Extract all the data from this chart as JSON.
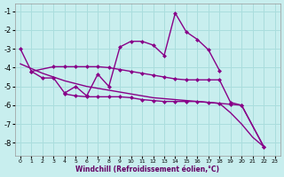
{
  "background_color": "#c8eeee",
  "grid_color": "#aadddd",
  "line_color": "#880088",
  "xlabel": "Windchill (Refroidissement éolien,°C)",
  "xlim": [
    -0.5,
    23.5
  ],
  "ylim": [
    -8.7,
    -0.6
  ],
  "yticks": [
    -8,
    -7,
    -6,
    -5,
    -4,
    -3,
    -2,
    -1
  ],
  "xticks": [
    0,
    1,
    2,
    3,
    4,
    5,
    6,
    7,
    8,
    9,
    10,
    11,
    12,
    13,
    14,
    15,
    16,
    17,
    18,
    19,
    20,
    21,
    22,
    23
  ],
  "curve1_x": [
    0,
    1,
    2,
    3,
    4,
    5,
    6,
    7,
    8,
    9,
    10,
    11,
    12,
    13,
    14,
    15,
    16,
    17,
    18
  ],
  "curve1_y": [
    -3.0,
    -4.2,
    -4.55,
    -4.55,
    -5.35,
    -5.0,
    -5.5,
    -4.35,
    -5.0,
    -2.9,
    -2.6,
    -2.6,
    -2.8,
    -3.35,
    -1.1,
    -2.1,
    -2.5,
    -3.05,
    -4.15
  ],
  "curve2_x": [
    1,
    3,
    4,
    5,
    6,
    7,
    8,
    9,
    10,
    11,
    12,
    13,
    14,
    15,
    16,
    17,
    18,
    19,
    20,
    22
  ],
  "curve2_y": [
    -4.2,
    -3.95,
    -3.95,
    -3.95,
    -3.95,
    -3.95,
    -4.0,
    -4.1,
    -4.2,
    -4.3,
    -4.4,
    -4.5,
    -4.6,
    -4.65,
    -4.65,
    -4.65,
    -4.65,
    -5.85,
    -6.0,
    -8.2
  ],
  "curve3_x": [
    4,
    5,
    6,
    7,
    8,
    9,
    10,
    11,
    12,
    13,
    14,
    15,
    16,
    17,
    18,
    19,
    20,
    22
  ],
  "curve3_y": [
    -5.4,
    -5.5,
    -5.55,
    -5.55,
    -5.55,
    -5.55,
    -5.6,
    -5.7,
    -5.75,
    -5.8,
    -5.8,
    -5.8,
    -5.8,
    -5.85,
    -5.9,
    -5.95,
    -6.0,
    -8.2
  ],
  "curve4_x": [
    0,
    1,
    2,
    3,
    4,
    5,
    6,
    7,
    8,
    9,
    10,
    11,
    12,
    13,
    14,
    15,
    16,
    17,
    18,
    19,
    20,
    21,
    22
  ],
  "curve4_y": [
    -3.8,
    -4.05,
    -4.3,
    -4.5,
    -4.7,
    -4.85,
    -5.0,
    -5.1,
    -5.2,
    -5.3,
    -5.4,
    -5.5,
    -5.6,
    -5.65,
    -5.7,
    -5.75,
    -5.8,
    -5.85,
    -5.9,
    -6.4,
    -7.0,
    -7.7,
    -8.2
  ]
}
